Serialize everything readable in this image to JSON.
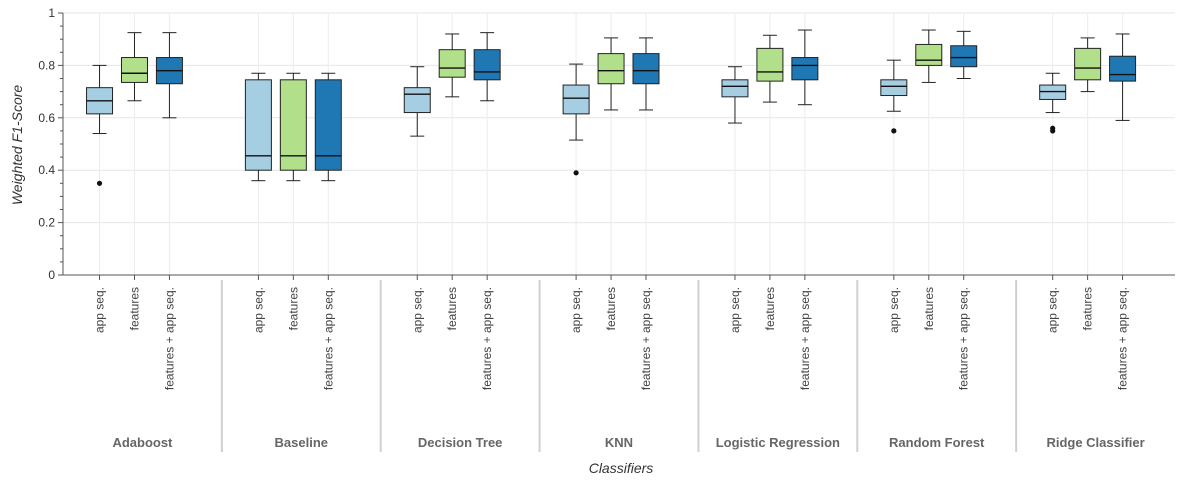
{
  "chart_data": {
    "type": "box",
    "ylabel": "Weighted F1-Score",
    "xlabel": "Classifiers",
    "ylim": [
      0,
      1
    ],
    "yticks": [
      "0",
      "0.2",
      "0.4",
      "0.6",
      "0.8",
      "1"
    ],
    "grid": true,
    "series_names": [
      "app seq.",
      "features",
      "features + app seq."
    ],
    "colors": {
      "app seq.": "#a6cee3",
      "features": "#b2df8a",
      "features + app seq.": "#1f78b4"
    },
    "groups": [
      {
        "name": "Adaboost",
        "boxes": [
          {
            "series": "app seq.",
            "min": 0.54,
            "q1": 0.615,
            "median": 0.665,
            "q3": 0.715,
            "max": 0.8,
            "outliers": [
              0.35
            ]
          },
          {
            "series": "features",
            "min": 0.665,
            "q1": 0.735,
            "median": 0.77,
            "q3": 0.83,
            "max": 0.925,
            "outliers": []
          },
          {
            "series": "features + app seq.",
            "min": 0.6,
            "q1": 0.73,
            "median": 0.78,
            "q3": 0.83,
            "max": 0.925,
            "outliers": []
          }
        ]
      },
      {
        "name": "Baseline",
        "boxes": [
          {
            "series": "app seq.",
            "min": 0.36,
            "q1": 0.4,
            "median": 0.455,
            "q3": 0.745,
            "max": 0.77,
            "outliers": []
          },
          {
            "series": "features",
            "min": 0.36,
            "q1": 0.4,
            "median": 0.455,
            "q3": 0.745,
            "max": 0.77,
            "outliers": []
          },
          {
            "series": "features + app seq.",
            "min": 0.36,
            "q1": 0.4,
            "median": 0.455,
            "q3": 0.745,
            "max": 0.77,
            "outliers": []
          }
        ]
      },
      {
        "name": "Decision Tree",
        "boxes": [
          {
            "series": "app seq.",
            "min": 0.53,
            "q1": 0.62,
            "median": 0.69,
            "q3": 0.715,
            "max": 0.795,
            "outliers": []
          },
          {
            "series": "features",
            "min": 0.68,
            "q1": 0.755,
            "median": 0.79,
            "q3": 0.86,
            "max": 0.92,
            "outliers": []
          },
          {
            "series": "features + app seq.",
            "min": 0.665,
            "q1": 0.745,
            "median": 0.775,
            "q3": 0.86,
            "max": 0.925,
            "outliers": []
          }
        ]
      },
      {
        "name": "KNN",
        "boxes": [
          {
            "series": "app seq.",
            "min": 0.515,
            "q1": 0.615,
            "median": 0.675,
            "q3": 0.725,
            "max": 0.805,
            "outliers": [
              0.39
            ]
          },
          {
            "series": "features",
            "min": 0.63,
            "q1": 0.73,
            "median": 0.78,
            "q3": 0.845,
            "max": 0.905,
            "outliers": []
          },
          {
            "series": "features + app seq.",
            "min": 0.63,
            "q1": 0.73,
            "median": 0.78,
            "q3": 0.845,
            "max": 0.905,
            "outliers": []
          }
        ]
      },
      {
        "name": "Logistic Regression",
        "boxes": [
          {
            "series": "app seq.",
            "min": 0.58,
            "q1": 0.68,
            "median": 0.72,
            "q3": 0.745,
            "max": 0.795,
            "outliers": []
          },
          {
            "series": "features",
            "min": 0.66,
            "q1": 0.74,
            "median": 0.775,
            "q3": 0.865,
            "max": 0.915,
            "outliers": []
          },
          {
            "series": "features + app seq.",
            "min": 0.65,
            "q1": 0.745,
            "median": 0.8,
            "q3": 0.83,
            "max": 0.935,
            "outliers": []
          }
        ]
      },
      {
        "name": "Random Forest",
        "boxes": [
          {
            "series": "app seq.",
            "min": 0.625,
            "q1": 0.685,
            "median": 0.72,
            "q3": 0.745,
            "max": 0.82,
            "outliers": [
              0.55
            ]
          },
          {
            "series": "features",
            "min": 0.735,
            "q1": 0.8,
            "median": 0.82,
            "q3": 0.88,
            "max": 0.935,
            "outliers": []
          },
          {
            "series": "features + app seq.",
            "min": 0.75,
            "q1": 0.795,
            "median": 0.83,
            "q3": 0.875,
            "max": 0.93,
            "outliers": []
          }
        ]
      },
      {
        "name": "Ridge Classifier",
        "boxes": [
          {
            "series": "app seq.",
            "min": 0.62,
            "q1": 0.67,
            "median": 0.7,
            "q3": 0.725,
            "max": 0.77,
            "outliers": [
              0.56,
              0.55
            ]
          },
          {
            "series": "features",
            "min": 0.7,
            "q1": 0.745,
            "median": 0.79,
            "q3": 0.865,
            "max": 0.905,
            "outliers": []
          },
          {
            "series": "features + app seq.",
            "min": 0.59,
            "q1": 0.74,
            "median": 0.765,
            "q3": 0.835,
            "max": 0.92,
            "outliers": []
          }
        ]
      }
    ]
  }
}
